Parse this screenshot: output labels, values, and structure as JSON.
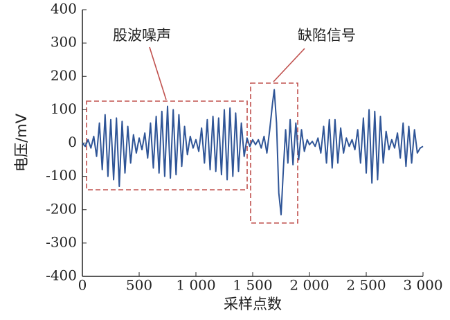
{
  "chart_data": {
    "type": "line",
    "x_label": "采样点数",
    "y_label": "电压/mV",
    "annotations": [
      "股波噪声",
      "缺陷信号"
    ],
    "xlim": [
      0,
      3000
    ],
    "xticks": [
      0,
      500,
      {
        "value": 1000,
        "label": "1 000"
      },
      {
        "value": 1500,
        "label": "1 500"
      },
      {
        "value": 2000,
        "label": "2 000"
      },
      {
        "value": 2500,
        "label": "2 500"
      },
      {
        "value": 3000,
        "label": "3 000"
      }
    ],
    "ylim": [
      -400,
      400
    ],
    "yticks": [
      -400,
      -300,
      -200,
      -100,
      0,
      100,
      200,
      300,
      400
    ],
    "grid": false,
    "x": [
      0,
      25,
      50,
      75,
      100,
      125,
      150,
      175,
      200,
      225,
      250,
      275,
      300,
      325,
      350,
      375,
      400,
      425,
      450,
      475,
      500,
      525,
      550,
      575,
      600,
      625,
      650,
      675,
      700,
      725,
      750,
      775,
      800,
      825,
      850,
      875,
      900,
      925,
      950,
      975,
      1000,
      1025,
      1050,
      1075,
      1100,
      1125,
      1150,
      1175,
      1200,
      1225,
      1250,
      1275,
      1300,
      1325,
      1350,
      1375,
      1400,
      1425,
      1450,
      1475,
      1500,
      1525,
      1550,
      1575,
      1600,
      1625,
      1650,
      1675,
      1690,
      1710,
      1730,
      1750,
      1770,
      1790,
      1810,
      1830,
      1855,
      1880,
      1905,
      1930,
      1955,
      1980,
      2000,
      2025,
      2050,
      2075,
      2100,
      2125,
      2150,
      2175,
      2200,
      2225,
      2250,
      2275,
      2300,
      2325,
      2350,
      2375,
      2400,
      2425,
      2450,
      2475,
      2500,
      2525,
      2550,
      2575,
      2600,
      2625,
      2650,
      2675,
      2700,
      2725,
      2750,
      2775,
      2800,
      2825,
      2850,
      2875,
      2900,
      2925,
      2950,
      2975,
      3000
    ],
    "series": [
      {
        "color": "#2f5597",
        "values": [
          0,
          -10,
          10,
          -15,
          20,
          -40,
          60,
          -80,
          85,
          -100,
          70,
          -110,
          75,
          -130,
          65,
          -90,
          50,
          -60,
          25,
          -30,
          15,
          -20,
          30,
          -45,
          60,
          -75,
          80,
          -90,
          95,
          -100,
          110,
          -105,
          100,
          -95,
          85,
          -70,
          50,
          -35,
          20,
          -15,
          10,
          -25,
          45,
          -60,
          70,
          -80,
          80,
          -85,
          75,
          -95,
          100,
          -110,
          105,
          -100,
          90,
          -85,
          60,
          -40,
          15,
          -10,
          10,
          -5,
          10,
          -15,
          20,
          -30,
          40,
          120,
          160,
          60,
          -150,
          -215,
          -80,
          40,
          -60,
          70,
          -65,
          60,
          -50,
          40,
          -25,
          10,
          -5,
          5,
          -10,
          15,
          -30,
          50,
          -60,
          70,
          -75,
          70,
          -60,
          45,
          -30,
          15,
          -10,
          10,
          -20,
          40,
          -60,
          75,
          -90,
          100,
          -120,
          95,
          -110,
          80,
          -60,
          35,
          -20,
          10,
          -15,
          30,
          -45,
          60,
          -70,
          50,
          -60,
          40,
          -30,
          -15,
          -10
        ]
      }
    ]
  }
}
